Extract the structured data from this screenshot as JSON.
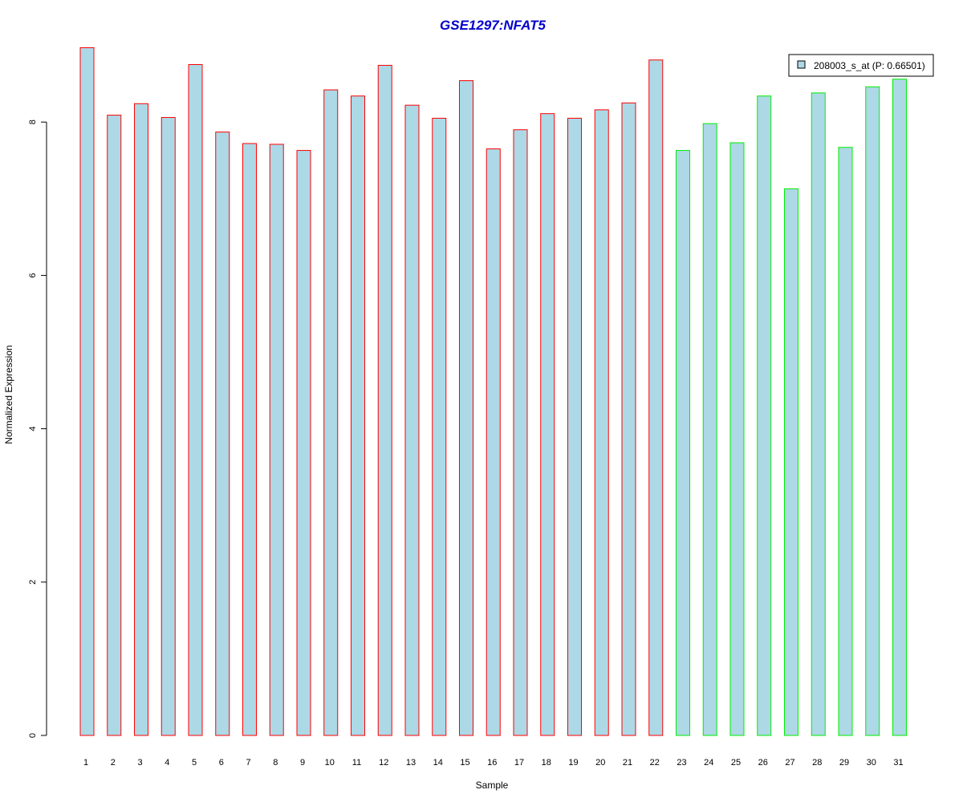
{
  "chart_data": {
    "type": "bar",
    "title": "GSE1297:NFAT5",
    "xlabel": "Sample",
    "ylabel": "Normalized Expression",
    "categories": [
      "1",
      "2",
      "3",
      "4",
      "5",
      "6",
      "7",
      "8",
      "9",
      "10",
      "11",
      "12",
      "13",
      "14",
      "15",
      "16",
      "17",
      "18",
      "19",
      "20",
      "21",
      "22",
      "23",
      "24",
      "25",
      "26",
      "27",
      "28",
      "29",
      "30",
      "31"
    ],
    "series": [
      {
        "name": "208003_s_at (P: 0.66501)",
        "values": [
          8.97,
          8.09,
          8.24,
          8.06,
          8.75,
          7.87,
          7.72,
          7.71,
          7.63,
          8.42,
          8.34,
          8.74,
          8.22,
          8.05,
          8.54,
          7.65,
          7.9,
          8.11,
          8.05,
          8.16,
          8.25,
          8.81,
          7.63,
          7.98,
          7.73,
          8.34,
          7.13,
          8.38,
          7.67,
          8.46,
          8.56
        ]
      }
    ],
    "group_a_count": 22,
    "ylim": [
      0,
      9
    ],
    "yticks": [
      0,
      2,
      4,
      6,
      8
    ],
    "legend_position": "top-right",
    "grid": false,
    "colors": {
      "title": "#0000cc",
      "bar_fill": "#add8e6",
      "group_a_border": "#ff0000",
      "group_b_border": "#00ee00",
      "axis": "#000000"
    }
  }
}
